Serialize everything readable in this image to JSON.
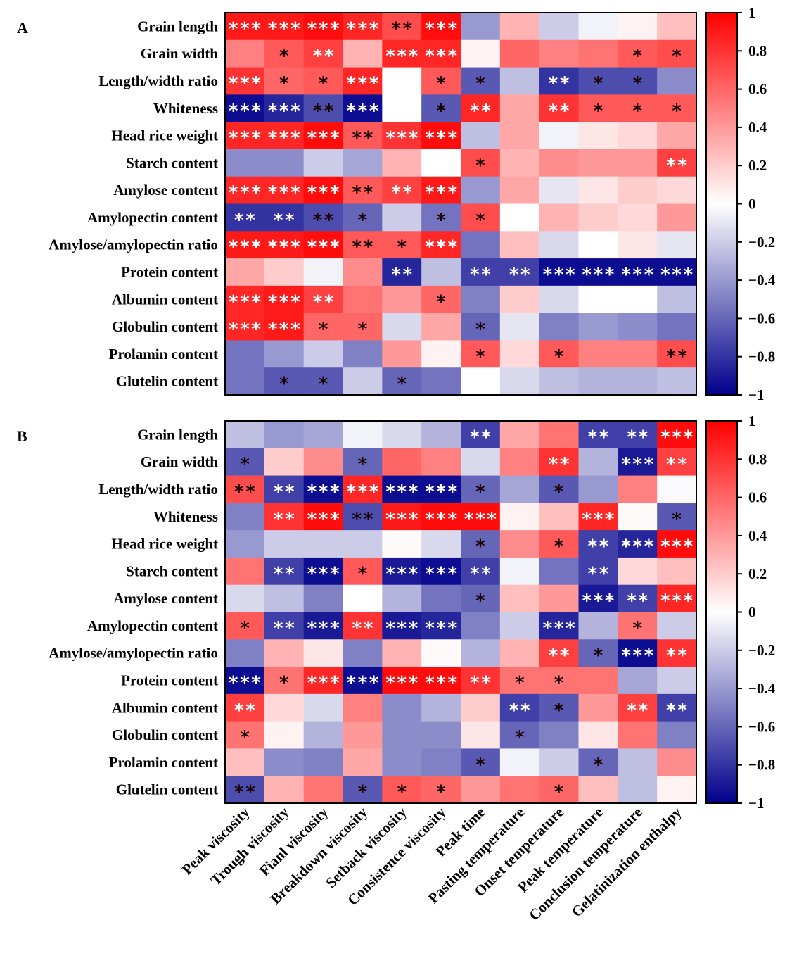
{
  "chart_data": [
    {
      "type": "heatmap",
      "panel_label": "A",
      "rows": [
        "Grain length",
        "Grain width",
        "Length/width ratio",
        "Whiteness",
        "Head rice weight",
        "Starch content",
        "Amylose content",
        "Amylopectin content",
        "Amylose/amylopectin ratio",
        "Protein content",
        "Albumin content",
        "Globulin content",
        "Prolamin content",
        "Glutelin content"
      ],
      "columns": [
        "Peak viscosity",
        "Trough viscosity",
        "Fianl viscosity",
        "Breakdown viscosity",
        "Setback viscosity",
        "Consistence viscosity",
        "Peak time",
        "Pasting temperature",
        "Onset temperature",
        "Peak temperature",
        "Conclusion temperature",
        "Gelatinization enthalpy"
      ],
      "values": [
        [
          0.9,
          0.9,
          0.95,
          0.85,
          0.7,
          0.95,
          -0.4,
          0.3,
          -0.2,
          -0.05,
          0.05,
          0.25
        ],
        [
          0.5,
          0.65,
          0.75,
          0.3,
          0.85,
          0.85,
          0.05,
          0.6,
          0.5,
          0.55,
          0.65,
          0.7
        ],
        [
          0.8,
          0.6,
          0.65,
          0.85,
          0.0,
          0.65,
          -0.65,
          -0.25,
          -0.8,
          -0.7,
          -0.7,
          -0.45
        ],
        [
          -0.95,
          -0.85,
          -0.7,
          -0.95,
          0.0,
          -0.65,
          0.85,
          0.35,
          0.8,
          0.65,
          0.65,
          0.65
        ],
        [
          0.85,
          0.85,
          0.95,
          0.65,
          0.8,
          0.95,
          -0.25,
          0.35,
          -0.05,
          0.1,
          0.15,
          0.35
        ],
        [
          -0.45,
          -0.45,
          -0.2,
          -0.35,
          0.3,
          0.0,
          0.7,
          0.3,
          0.45,
          0.4,
          0.4,
          0.75
        ],
        [
          0.85,
          0.85,
          0.95,
          0.65,
          0.75,
          0.9,
          -0.4,
          0.35,
          -0.1,
          0.1,
          0.2,
          0.15
        ],
        [
          -0.8,
          -0.8,
          -0.7,
          -0.6,
          -0.2,
          -0.55,
          0.7,
          0.0,
          0.3,
          0.2,
          0.15,
          0.4
        ],
        [
          0.9,
          0.9,
          0.95,
          0.65,
          0.65,
          0.85,
          -0.55,
          0.25,
          -0.15,
          0.0,
          0.1,
          -0.1
        ],
        [
          0.35,
          0.2,
          -0.05,
          0.45,
          -0.85,
          -0.25,
          -0.75,
          -0.75,
          -0.95,
          -0.95,
          -0.95,
          -0.95
        ],
        [
          0.85,
          0.9,
          0.75,
          0.55,
          0.4,
          0.6,
          -0.5,
          0.2,
          -0.15,
          0.0,
          0.0,
          -0.25
        ],
        [
          0.85,
          0.9,
          0.6,
          0.6,
          -0.15,
          0.35,
          -0.6,
          -0.1,
          -0.5,
          -0.4,
          -0.45,
          -0.55
        ],
        [
          -0.55,
          -0.4,
          -0.2,
          -0.5,
          0.4,
          0.05,
          0.65,
          0.15,
          0.65,
          0.5,
          0.5,
          0.7
        ],
        [
          -0.55,
          -0.65,
          -0.65,
          -0.2,
          -0.6,
          -0.55,
          0.0,
          -0.15,
          -0.25,
          -0.3,
          -0.3,
          -0.25
        ]
      ],
      "significance": [
        [
          "***",
          "***",
          "***",
          "***",
          "**",
          "***",
          "",
          "",
          "",
          "",
          "",
          ""
        ],
        [
          "",
          "*",
          "**",
          "",
          "***",
          "***",
          "",
          "",
          "",
          "",
          "*",
          "*"
        ],
        [
          "***",
          "*",
          "*",
          "***",
          "",
          "*",
          "*",
          "",
          "**",
          "*",
          "*",
          ""
        ],
        [
          "***",
          "***",
          "**",
          "***",
          "",
          "*",
          "**",
          "",
          "**",
          "*",
          "*",
          "*"
        ],
        [
          "***",
          "***",
          "***",
          "**",
          "***",
          "***",
          "",
          "",
          "",
          "",
          "",
          ""
        ],
        [
          "",
          "",
          "",
          "",
          "",
          "",
          "*",
          "",
          "",
          "",
          "",
          "**"
        ],
        [
          "***",
          "***",
          "***",
          "**",
          "**",
          "***",
          "",
          "",
          "",
          "",
          "",
          ""
        ],
        [
          "**",
          "**",
          "**",
          "*",
          "",
          "*",
          "*",
          "",
          "",
          "",
          "",
          ""
        ],
        [
          "***",
          "***",
          "***",
          "**",
          "*",
          "***",
          "",
          "",
          "",
          "",
          "",
          ""
        ],
        [
          "",
          "",
          "",
          "",
          "**",
          "",
          "**",
          "**",
          "***",
          "***",
          "***",
          "***"
        ],
        [
          "***",
          "***",
          "**",
          "",
          "",
          "*",
          "",
          "",
          "",
          "",
          "",
          ""
        ],
        [
          "***",
          "***",
          "*",
          "*",
          "",
          "",
          "*",
          "",
          "",
          "",
          "",
          ""
        ],
        [
          "",
          "",
          "",
          "",
          "",
          "",
          "*",
          "",
          "*",
          "",
          "",
          "**"
        ],
        [
          "",
          "*",
          "*",
          "",
          "*",
          "",
          "",
          "",
          "",
          "",
          "",
          ""
        ]
      ],
      "colorbar": {
        "min": -1,
        "max": 1,
        "ticks": [
          "1",
          "0.8",
          "0.6",
          "0.4",
          "0.2",
          "0",
          "−0.2",
          "−0.4",
          "−0.6",
          "−0.8",
          "−1"
        ],
        "low_color": "#00008b",
        "mid_color": "#ffffff",
        "high_color": "#ff0000"
      }
    },
    {
      "type": "heatmap",
      "panel_label": "B",
      "rows": [
        "Grain length",
        "Grain width",
        "Length/width ratio",
        "Whiteness",
        "Head rice weight",
        "Starch content",
        "Amylose content",
        "Amylopectin content",
        "Amylose/amylopectin ratio",
        "Protein content",
        "Albumin content",
        "Globulin content",
        "Prolamin content",
        "Glutelin content"
      ],
      "columns": [
        "Peak viscosity",
        "Trough viscosity",
        "Fianl viscosity",
        "Breakdown viscosity",
        "Setback viscosity",
        "Consistence viscosity",
        "Peak time",
        "Pasting temperature",
        "Onset temperature",
        "Peak temperature",
        "Conclusion temperature",
        "Gelatinization enthalpy"
      ],
      "values": [
        [
          -0.25,
          -0.4,
          -0.35,
          -0.05,
          -0.15,
          -0.3,
          -0.75,
          0.35,
          0.55,
          -0.75,
          -0.75,
          0.95
        ],
        [
          -0.65,
          0.2,
          0.45,
          -0.6,
          0.6,
          0.5,
          -0.15,
          0.5,
          0.8,
          -0.3,
          -0.9,
          0.75
        ],
        [
          0.7,
          -0.75,
          -0.95,
          0.85,
          -0.95,
          -0.95,
          -0.6,
          -0.35,
          -0.65,
          -0.4,
          0.5,
          -0.02
        ],
        [
          -0.5,
          0.8,
          0.95,
          -0.7,
          0.9,
          0.95,
          0.95,
          0.05,
          0.25,
          0.85,
          0.02,
          -0.65
        ],
        [
          -0.4,
          -0.2,
          -0.2,
          -0.2,
          0.02,
          -0.15,
          -0.6,
          0.45,
          0.65,
          -0.75,
          -0.85,
          0.95
        ],
        [
          0.55,
          -0.75,
          -0.95,
          0.65,
          -0.9,
          -0.95,
          -0.75,
          -0.05,
          -0.55,
          -0.75,
          0.15,
          0.25
        ],
        [
          -0.15,
          -0.25,
          -0.5,
          0.0,
          -0.3,
          -0.55,
          -0.6,
          0.25,
          0.4,
          -0.9,
          -0.75,
          0.85
        ],
        [
          0.65,
          -0.75,
          -0.9,
          0.8,
          -0.9,
          -0.85,
          -0.5,
          -0.2,
          -0.85,
          -0.3,
          0.55,
          -0.2
        ],
        [
          -0.5,
          0.3,
          0.1,
          -0.5,
          0.3,
          0.02,
          -0.3,
          0.3,
          0.75,
          -0.6,
          -0.95,
          0.8
        ],
        [
          -0.95,
          0.55,
          0.85,
          -0.95,
          0.95,
          0.95,
          0.8,
          0.55,
          0.55,
          0.55,
          -0.35,
          -0.2
        ],
        [
          0.75,
          0.15,
          -0.15,
          0.5,
          -0.45,
          -0.3,
          0.2,
          -0.75,
          -0.65,
          0.4,
          0.75,
          -0.75
        ],
        [
          0.55,
          0.05,
          -0.3,
          0.4,
          -0.45,
          -0.45,
          0.1,
          -0.6,
          -0.5,
          0.1,
          0.55,
          -0.5
        ],
        [
          0.25,
          -0.45,
          -0.5,
          0.35,
          -0.45,
          -0.5,
          -0.65,
          -0.05,
          -0.2,
          -0.6,
          -0.25,
          0.45
        ],
        [
          -0.7,
          0.3,
          0.55,
          -0.65,
          0.65,
          0.6,
          0.4,
          0.55,
          0.6,
          0.25,
          -0.25,
          0.05
        ]
      ],
      "significance": [
        [
          "",
          "",
          "",
          "",
          "",
          "",
          "**",
          "",
          "",
          "**",
          "**",
          "***"
        ],
        [
          "*",
          "",
          "",
          "*",
          "",
          "",
          "",
          "",
          "**",
          "",
          "***",
          "**"
        ],
        [
          "**",
          "**",
          "***",
          "***",
          "***",
          "***",
          "*",
          "",
          "*",
          "",
          "",
          ""
        ],
        [
          "",
          "**",
          "***",
          "**",
          "***",
          "***",
          "***",
          "",
          "",
          "***",
          "",
          "*"
        ],
        [
          "",
          "",
          "",
          "",
          "",
          "",
          "*",
          "",
          "*",
          "**",
          "***",
          "***"
        ],
        [
          "",
          "**",
          "***",
          "*",
          "***",
          "***",
          "**",
          "",
          "",
          "**",
          "",
          ""
        ],
        [
          "",
          "",
          "",
          "",
          "",
          "",
          "*",
          "",
          "",
          "***",
          "**",
          "***"
        ],
        [
          "*",
          "**",
          "***",
          "**",
          "***",
          "***",
          "",
          "",
          "***",
          "",
          "*",
          ""
        ],
        [
          "",
          "",
          "",
          "",
          "",
          "",
          "",
          "",
          "**",
          "*",
          "***",
          "**"
        ],
        [
          "***",
          "*",
          "***",
          "***",
          "***",
          "***",
          "**",
          "*",
          "*",
          "",
          "",
          ""
        ],
        [
          "**",
          "",
          "",
          "",
          "",
          "",
          "",
          "**",
          "*",
          "",
          "**",
          "**"
        ],
        [
          "*",
          "",
          "",
          "",
          "",
          "",
          "",
          "*",
          "",
          "",
          "",
          ""
        ],
        [
          "",
          "",
          "",
          "",
          "",
          "",
          "*",
          "",
          "",
          "*",
          "",
          ""
        ],
        [
          "**",
          "",
          "",
          "*",
          "*",
          "*",
          "",
          "",
          "*",
          "",
          "",
          ""
        ]
      ],
      "colorbar": {
        "min": -1,
        "max": 1,
        "ticks": [
          "1",
          "0.8",
          "0.6",
          "0.4",
          "0.2",
          "0",
          "−0.2",
          "−0.4",
          "−0.6",
          "−0.8",
          "−1"
        ],
        "low_color": "#00008b",
        "mid_color": "#ffffff",
        "high_color": "#ff0000"
      }
    }
  ]
}
